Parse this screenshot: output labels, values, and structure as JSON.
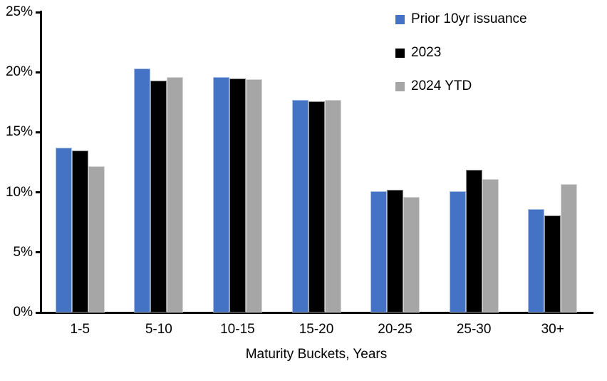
{
  "chart_data": {
    "type": "bar",
    "categories": [
      "1-5",
      "5-10",
      "10-15",
      "15-20",
      "20-25",
      "25-30",
      "30+"
    ],
    "series": [
      {
        "name": "Prior 10yr issuance",
        "color": "#4472C4",
        "values": [
          13.7,
          20.3,
          19.6,
          17.7,
          10.1,
          10.1,
          8.6
        ]
      },
      {
        "name": "2023",
        "color": "#000000",
        "values": [
          13.5,
          19.3,
          19.5,
          17.6,
          10.2,
          11.9,
          8.1
        ]
      },
      {
        "name": "2024 YTD",
        "color": "#A6A6A6",
        "values": [
          12.2,
          19.6,
          19.4,
          17.7,
          9.6,
          11.1,
          10.7
        ]
      }
    ],
    "xlabel": "Maturity Buckets, Years",
    "ylim": [
      0,
      25
    ],
    "yticks": [
      0,
      5,
      10,
      15,
      20,
      25
    ],
    "ytick_labels": [
      "0%",
      "5%",
      "10%",
      "15%",
      "20%",
      "25%"
    ],
    "legend_position": "top-right",
    "grid": false,
    "axis_color": "#000000"
  }
}
